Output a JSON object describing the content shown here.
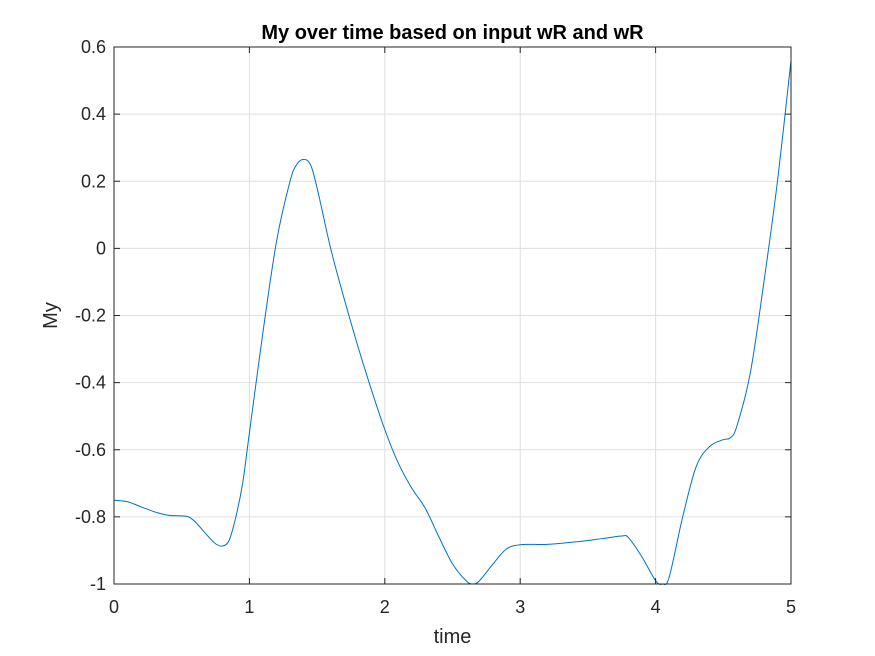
{
  "chart_data": {
    "type": "line",
    "title": "My over time based on input wR and wR",
    "xlabel": "time",
    "ylabel": "My",
    "xlim": [
      0,
      5
    ],
    "ylim": [
      -1,
      0.6
    ],
    "xticks": [
      0,
      1,
      2,
      3,
      4,
      5
    ],
    "xtick_labels": [
      "0",
      "1",
      "2",
      "3",
      "4",
      "5"
    ],
    "yticks": [
      -1,
      -0.8,
      -0.6,
      -0.4,
      -0.2,
      0,
      0.2,
      0.4,
      0.6
    ],
    "ytick_labels": [
      "-1",
      "-0.8",
      "-0.6",
      "-0.4",
      "-0.2",
      "0",
      "0.2",
      "0.4",
      "0.6"
    ],
    "grid": true,
    "legend": "none",
    "series": [
      {
        "color": "#0072BD",
        "x": [
          0,
          0.1,
          0.2,
          0.3,
          0.4,
          0.5,
          0.55,
          0.6,
          0.7,
          0.75,
          0.8,
          0.85,
          0.9,
          0.95,
          1.0,
          1.1,
          1.2,
          1.3,
          1.35,
          1.4,
          1.45,
          1.5,
          1.6,
          1.7,
          1.8,
          1.9,
          2.0,
          2.1,
          2.2,
          2.3,
          2.4,
          2.5,
          2.6,
          2.65,
          2.7,
          2.8,
          2.9,
          3.0,
          3.1,
          3.2,
          3.4,
          3.6,
          3.75,
          3.8,
          3.9,
          4.0,
          4.05,
          4.1,
          4.2,
          4.3,
          4.4,
          4.5,
          4.55,
          4.6,
          4.7,
          4.8,
          4.9,
          5.0
        ],
        "y": [
          -0.75,
          -0.755,
          -0.77,
          -0.785,
          -0.795,
          -0.797,
          -0.8,
          -0.815,
          -0.86,
          -0.88,
          -0.887,
          -0.87,
          -0.8,
          -0.7,
          -0.55,
          -0.25,
          0.02,
          0.2,
          0.25,
          0.265,
          0.25,
          0.18,
          0.0,
          -0.15,
          -0.29,
          -0.42,
          -0.54,
          -0.64,
          -0.715,
          -0.775,
          -0.86,
          -0.94,
          -0.99,
          -1.0,
          -0.99,
          -0.94,
          -0.895,
          -0.883,
          -0.882,
          -0.882,
          -0.875,
          -0.865,
          -0.857,
          -0.862,
          -0.92,
          -0.99,
          -1.0,
          -0.98,
          -0.8,
          -0.65,
          -0.59,
          -0.57,
          -0.565,
          -0.53,
          -0.37,
          -0.1,
          0.2,
          0.56
        ]
      }
    ]
  }
}
